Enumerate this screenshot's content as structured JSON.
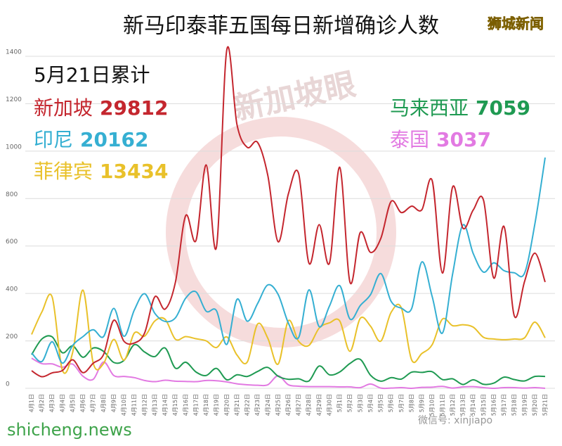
{
  "chart_data": {
    "type": "line",
    "title": "新马印泰菲五国每日新增确诊人数",
    "source": "狮城新闻",
    "watermark": "新加坡眼",
    "footer_left": "shicheng.news",
    "footer_right": "微信号: xinjiapo",
    "summary_title": "5月21日累计",
    "categories": [
      "4月1日",
      "4月2日",
      "4月3日",
      "4月4日",
      "4月5日",
      "4月6日",
      "4月7日",
      "4月8日",
      "4月9日",
      "4月10日",
      "4月11日",
      "4月12日",
      "4月13日",
      "4月14日",
      "4月15日",
      "4月16日",
      "4月17日",
      "4月18日",
      "4月19日",
      "4月20日",
      "4月21日",
      "4月22日",
      "4月23日",
      "4月24日",
      "4月25日",
      "4月26日",
      "4月27日",
      "4月28日",
      "4月29日",
      "4月30日",
      "5月1日",
      "5月2日",
      "5月3日",
      "5月4日",
      "5月5日",
      "5月6日",
      "5月7日",
      "5月8日",
      "5月9日",
      "5月10日",
      "5月11日",
      "5月12日",
      "5月13日",
      "5月14日",
      "5月15日",
      "5月16日",
      "5月17日",
      "5月18日",
      "5月19日",
      "5月20日",
      "5月21日"
    ],
    "ylim": [
      0,
      1400
    ],
    "yticks": [
      0,
      200,
      400,
      600,
      800,
      1000,
      1200,
      1400
    ],
    "grid": true,
    "series": [
      {
        "name": "新加坡",
        "total": 29812,
        "color": "#c4262e",
        "values": [
          74,
          49,
          65,
          75,
          120,
          66,
          106,
          142,
          287,
          198,
          191,
          233,
          386,
          334,
          447,
          728,
          623,
          942,
          596,
          1426,
          1111,
          1016,
          1037,
          897,
          618,
          820,
          905,
          528,
          690,
          528,
          932,
          447,
          657,
          573,
          632,
          788,
          741,
          768,
          753,
          876,
          486,
          850,
          675,
          752,
          793,
          465,
          682,
          305,
          451,
          570,
          448
        ]
      },
      {
        "name": "印尼",
        "total": 20162,
        "color": "#35afd2",
        "values": [
          149,
          113,
          196,
          106,
          181,
          218,
          247,
          218,
          337,
          219,
          330,
          399,
          316,
          282,
          297,
          380,
          407,
          325,
          327,
          185,
          375,
          283,
          357,
          436,
          396,
          275,
          214,
          415,
          260,
          347,
          433,
          292,
          349,
          395,
          484,
          367,
          338,
          336,
          533,
          387,
          233,
          484,
          689,
          568,
          490,
          529,
          496,
          487,
          486,
          693,
          973
        ]
      },
      {
        "name": "菲律宾",
        "total": 13434,
        "color": "#e9c12a",
        "values": [
          227,
          322,
          385,
          76,
          152,
          414,
          106,
          104,
          206,
          119,
          233,
          220,
          284,
          291,
          207,
          218,
          209,
          200,
          172,
          217,
          140,
          111,
          271,
          211,
          102,
          285,
          198,
          181,
          254,
          276,
          284,
          156,
          295,
          262,
          199,
          320,
          339,
          120,
          147,
          184,
          292,
          264,
          268,
          258,
          215,
          208,
          205,
          208,
          213,
          279,
          213
        ]
      },
      {
        "name": "马来西亚",
        "total": 7059,
        "color": "#1f9a52",
        "values": [
          142,
          208,
          217,
          150,
          179,
          131,
          170,
          156,
          109,
          118,
          184,
          153,
          134,
          170,
          85,
          110,
          69,
          54,
          84,
          36,
          57,
          50,
          71,
          88,
          51,
          38,
          40,
          31,
          94,
          57,
          69,
          105,
          122,
          55,
          30,
          45,
          39,
          68,
          67,
          70,
          37,
          40,
          16,
          36,
          17,
          22,
          47,
          37,
          31,
          50,
          50
        ]
      },
      {
        "name": "泰国",
        "total": 3037,
        "color": "#e27ae2",
        "values": [
          127,
          104,
          103,
          89,
          102,
          51,
          38,
          111,
          54,
          50,
          45,
          33,
          28,
          34,
          30,
          29,
          28,
          33,
          32,
          27,
          19,
          15,
          13,
          15,
          53,
          15,
          9,
          7,
          7,
          7,
          6,
          6,
          3,
          18,
          1,
          1,
          3,
          0,
          4,
          5,
          8,
          1,
          6,
          7,
          3,
          0,
          3,
          3,
          1,
          3,
          0
        ]
      }
    ]
  }
}
